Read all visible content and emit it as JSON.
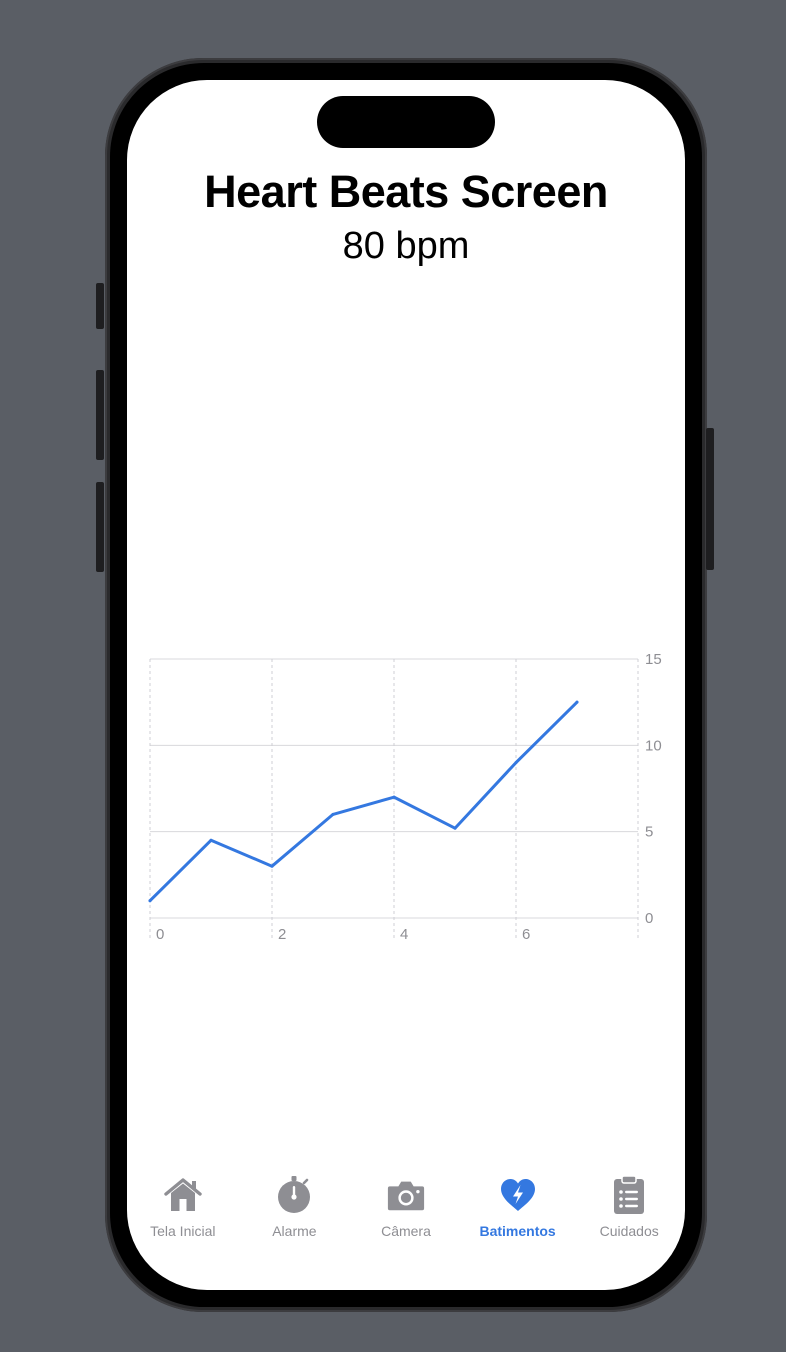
{
  "screen": {
    "title": "Heart Beats Screen",
    "bpm": "80 bpm"
  },
  "chart_data": {
    "type": "line",
    "x": [
      0,
      1,
      2,
      3,
      4,
      5,
      6,
      7
    ],
    "y": [
      1,
      4.5,
      3,
      6,
      7,
      5.2,
      9,
      12.5
    ],
    "xticks": [
      "0",
      "2",
      "4",
      "6"
    ],
    "yticks": [
      "0",
      "5",
      "10",
      "15"
    ],
    "xlim": [
      0,
      8
    ],
    "ylim": [
      0,
      15
    ],
    "line_color": "#3478e0",
    "grid": true,
    "y_axis_position": "right"
  },
  "tabbar": {
    "active_color": "#3478e0",
    "inactive_color": "#8e8e93",
    "items": [
      {
        "label": "Tela Inicial",
        "icon": "house-icon"
      },
      {
        "label": "Alarme",
        "icon": "stopwatch-icon"
      },
      {
        "label": "Câmera",
        "icon": "camera-icon"
      },
      {
        "label": "Batimentos",
        "icon": "heart-bolt-icon",
        "active": true
      },
      {
        "label": "Cuidados",
        "icon": "clipboard-list-icon"
      }
    ]
  }
}
